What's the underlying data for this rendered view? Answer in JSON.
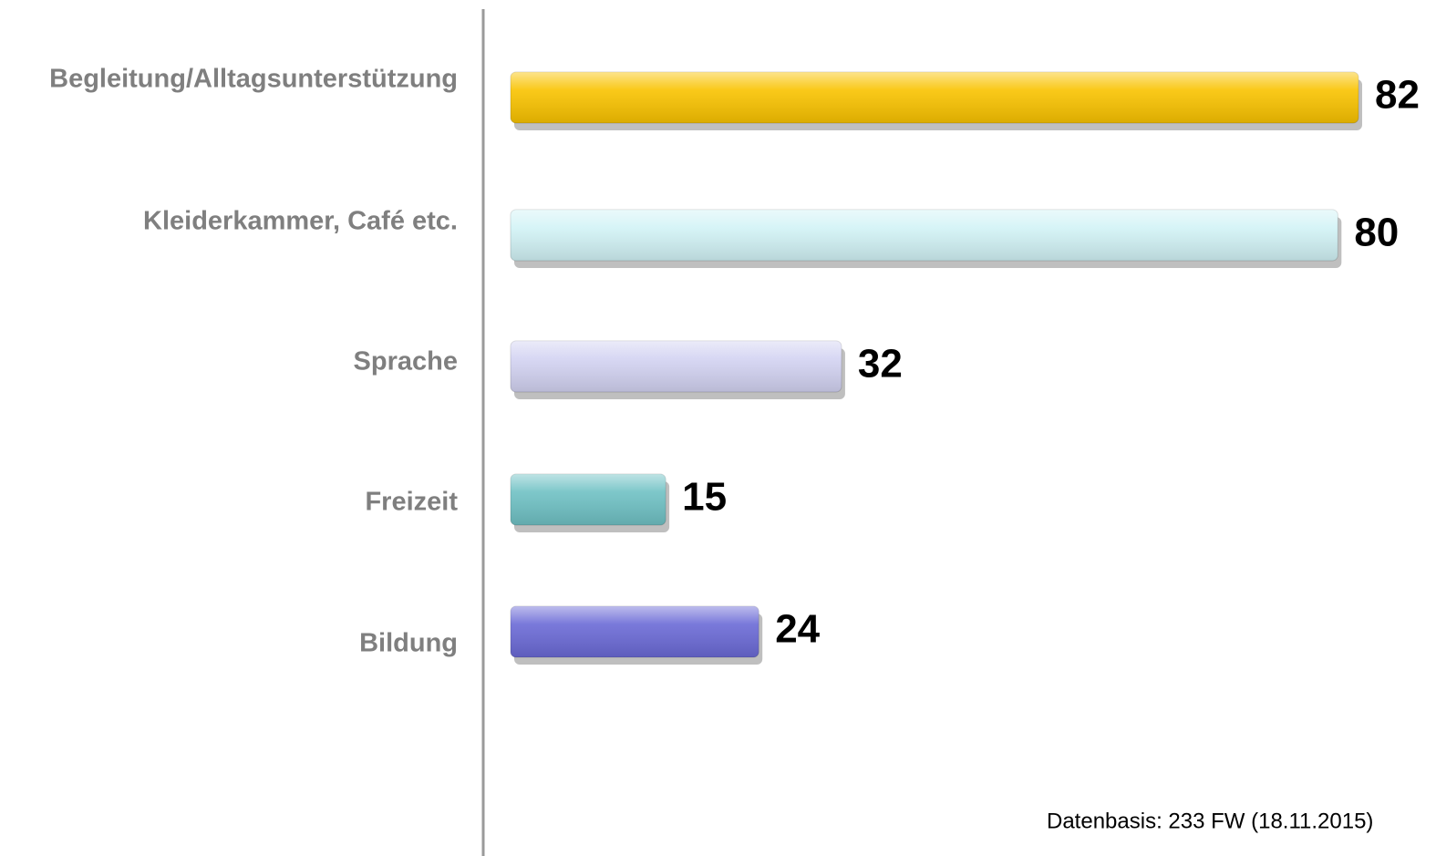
{
  "chart_data": {
    "type": "bar",
    "orientation": "horizontal",
    "categories": [
      "Begleitung/Alltagsunterstützung",
      "Kleiderkammer, Café etc.",
      "Sprache",
      "Freizeit",
      "Bildung"
    ],
    "values": [
      82,
      80,
      32,
      15,
      24
    ],
    "colors": [
      "#f9c300",
      "#d2f3f6",
      "#d3d3f2",
      "#6fc1c4",
      "#6b6ad6"
    ],
    "note": "Datenbasis: 233 FW (18.11.2015)"
  }
}
